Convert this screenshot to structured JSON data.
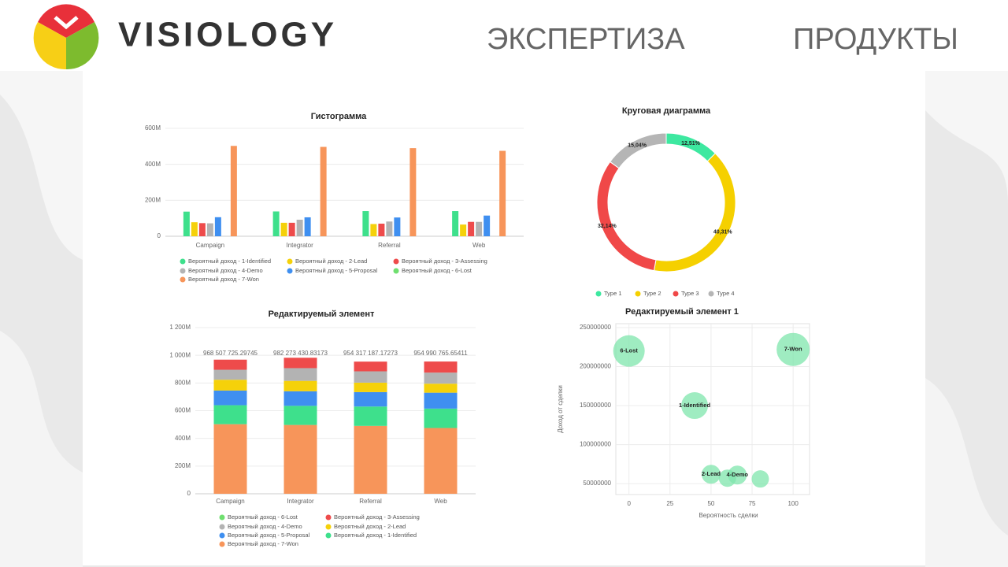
{
  "header": {
    "brand": "VISIOLOGY",
    "nav": [
      "ЭКСПЕРТИЗА",
      "ПРОДУКТЫ"
    ]
  },
  "chart_data": [
    {
      "type": "bar",
      "title": "Гистограмма",
      "categories": [
        "Campaign",
        "Integrator",
        "Referral",
        "Web"
      ],
      "ylim": [
        0,
        600000000
      ],
      "yticks": [
        0,
        {
          "value": 200000000,
          "label": "200M"
        },
        {
          "value": 400000000,
          "label": "400M"
        },
        {
          "value": 600000000,
          "label": "600M"
        }
      ],
      "grid": true,
      "series": [
        {
          "name": "Вероятный доход - 1-Identified",
          "color": "#3ee08c",
          "values": [
            137000000,
            138000000,
            140000000,
            140000000
          ]
        },
        {
          "name": "Вероятный доход - 2-Lead",
          "color": "#f5d10a",
          "values": [
            78000000,
            75000000,
            68000000,
            65000000
          ]
        },
        {
          "name": "Вероятный доход - 3-Assessing",
          "color": "#ee4b4b",
          "values": [
            73000000,
            75000000,
            70000000,
            80000000
          ]
        },
        {
          "name": "Вероятный доход - 4-Demo",
          "color": "#b3b3b3",
          "values": [
            72000000,
            92000000,
            82000000,
            80000000
          ]
        },
        {
          "name": "Вероятный доход - 5-Proposal",
          "color": "#3f8ff0",
          "values": [
            106000000,
            105270000,
            104320000,
            114990000
          ]
        },
        {
          "name": "Вероятный доход - 6-Lost",
          "color": "#6fdf6f",
          "values": [
            0,
            0,
            0,
            0
          ]
        },
        {
          "name": "Вероятный доход - 7-Won",
          "color": "#f7955a",
          "values": [
            502500000,
            497000000,
            490000000,
            475000000
          ]
        }
      ]
    },
    {
      "type": "bar",
      "stacked": true,
      "title": "Редактируемый элемент",
      "categories": [
        "Campaign",
        "Integrator",
        "Referral",
        "Web"
      ],
      "total_labels": [
        "968 507 725.29745",
        "982 273 430.83173",
        "954 317 187.17273",
        "954 990 765.65411"
      ],
      "ylim": [
        0,
        1200000000
      ],
      "yticks": [
        0,
        {
          "value": 200000000,
          "label": "200M"
        },
        {
          "value": 400000000,
          "label": "400M"
        },
        {
          "value": 600000000,
          "label": "600M"
        },
        {
          "value": 800000000,
          "label": "800M"
        },
        {
          "value": 1000000000,
          "label": "1 000M"
        },
        {
          "value": 1200000000,
          "label": "1 200M"
        }
      ],
      "grid": true,
      "series": [
        {
          "name": "Вероятный доход - 6-Lost",
          "color": "#6fdf6f",
          "values": [
            0,
            0,
            0,
            0
          ]
        },
        {
          "name": "Вероятный доход - 3-Assessing",
          "color": "#ee4b4b",
          "values": [
            73000000,
            75000000,
            70000000,
            80000000
          ]
        },
        {
          "name": "Вероятный доход - 4-Demo",
          "color": "#b3b3b3",
          "values": [
            72000000,
            92000000,
            82000000,
            80000000
          ]
        },
        {
          "name": "Вероятный доход - 2-Lead",
          "color": "#f5d10a",
          "values": [
            78000000,
            75000000,
            68000000,
            65000000
          ]
        },
        {
          "name": "Вероятный доход - 5-Proposal",
          "color": "#3f8ff0",
          "values": [
            106000000,
            105270000,
            104320000,
            114990000
          ]
        },
        {
          "name": "Вероятный доход - 1-Identified",
          "color": "#3ee08c",
          "values": [
            137000000,
            138000000,
            140000000,
            140000000
          ]
        },
        {
          "name": "Вероятный доход - 7-Won",
          "color": "#f7955a",
          "values": [
            502500000,
            497000000,
            490000000,
            475000000
          ]
        }
      ]
    },
    {
      "type": "donut",
      "title": "Круговая диаграмма",
      "categories": [
        "Type 1",
        "Type 2",
        "Type 3",
        "Type 4"
      ],
      "values": [
        12.51,
        40.31,
        32.14,
        15.04
      ],
      "value_labels": [
        "12,51%",
        "40,31%",
        "32,14%",
        "15,04%"
      ],
      "colors": [
        "#3de8a0",
        "#f5d000",
        "#f04848",
        "#b5b5b5"
      ]
    },
    {
      "type": "bubble",
      "title": "Редактируемый элемент 1",
      "xlabel": "Вероятность сделки",
      "ylabel": "Доход от сделки",
      "color": "#7fe6ac",
      "x": [
        0,
        100,
        40,
        50,
        66,
        60,
        80
      ],
      "y": [
        220000000,
        222000000,
        150000000,
        62000000,
        61000000,
        57000000,
        56000000
      ],
      "sizes": [
        20,
        21,
        17,
        12,
        12,
        11,
        11
      ],
      "labels": [
        "6-Lost",
        "7-Won",
        "1-Identified",
        "2-Lead",
        "4-Demo",
        null,
        null
      ],
      "xlim": [
        -8,
        110
      ],
      "xticks": [
        0,
        25,
        50,
        75,
        100
      ],
      "ylim": [
        36000000,
        255000000
      ],
      "yticks": [
        50000000,
        100000000,
        150000000,
        200000000,
        250000000
      ],
      "grid": true
    }
  ]
}
